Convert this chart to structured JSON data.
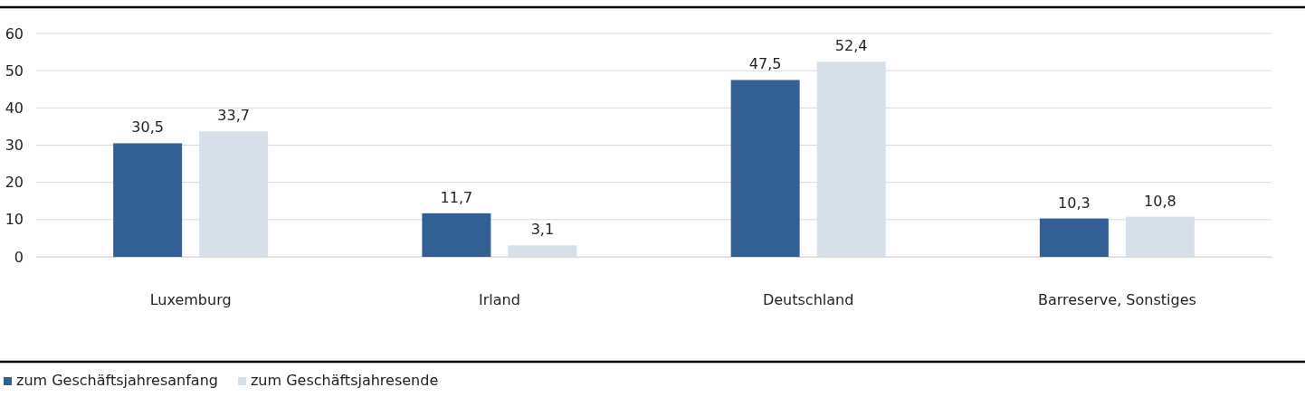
{
  "chart_data": {
    "type": "bar",
    "categories": [
      "Luxemburg",
      "Irland",
      "Deutschland",
      "Barreserve, Sonstiges"
    ],
    "series": [
      {
        "name": "zum Geschäftsjahresanfang",
        "color": "#336094",
        "values": [
          30.5,
          11.7,
          47.5,
          10.3
        ],
        "value_labels": [
          "30,5",
          "11,7",
          "47,5",
          "10,3"
        ]
      },
      {
        "name": "zum Geschäftsjahresende",
        "color": "#d6e0ea",
        "values": [
          33.7,
          3.1,
          52.4,
          10.8
        ],
        "value_labels": [
          "33,7",
          "3,1",
          "52,4",
          "10,8"
        ]
      }
    ],
    "ylim": [
      0,
      60
    ],
    "yticks": [
      0,
      10,
      20,
      30,
      40,
      50,
      60
    ],
    "grid": "y",
    "legend": "bottom left"
  }
}
